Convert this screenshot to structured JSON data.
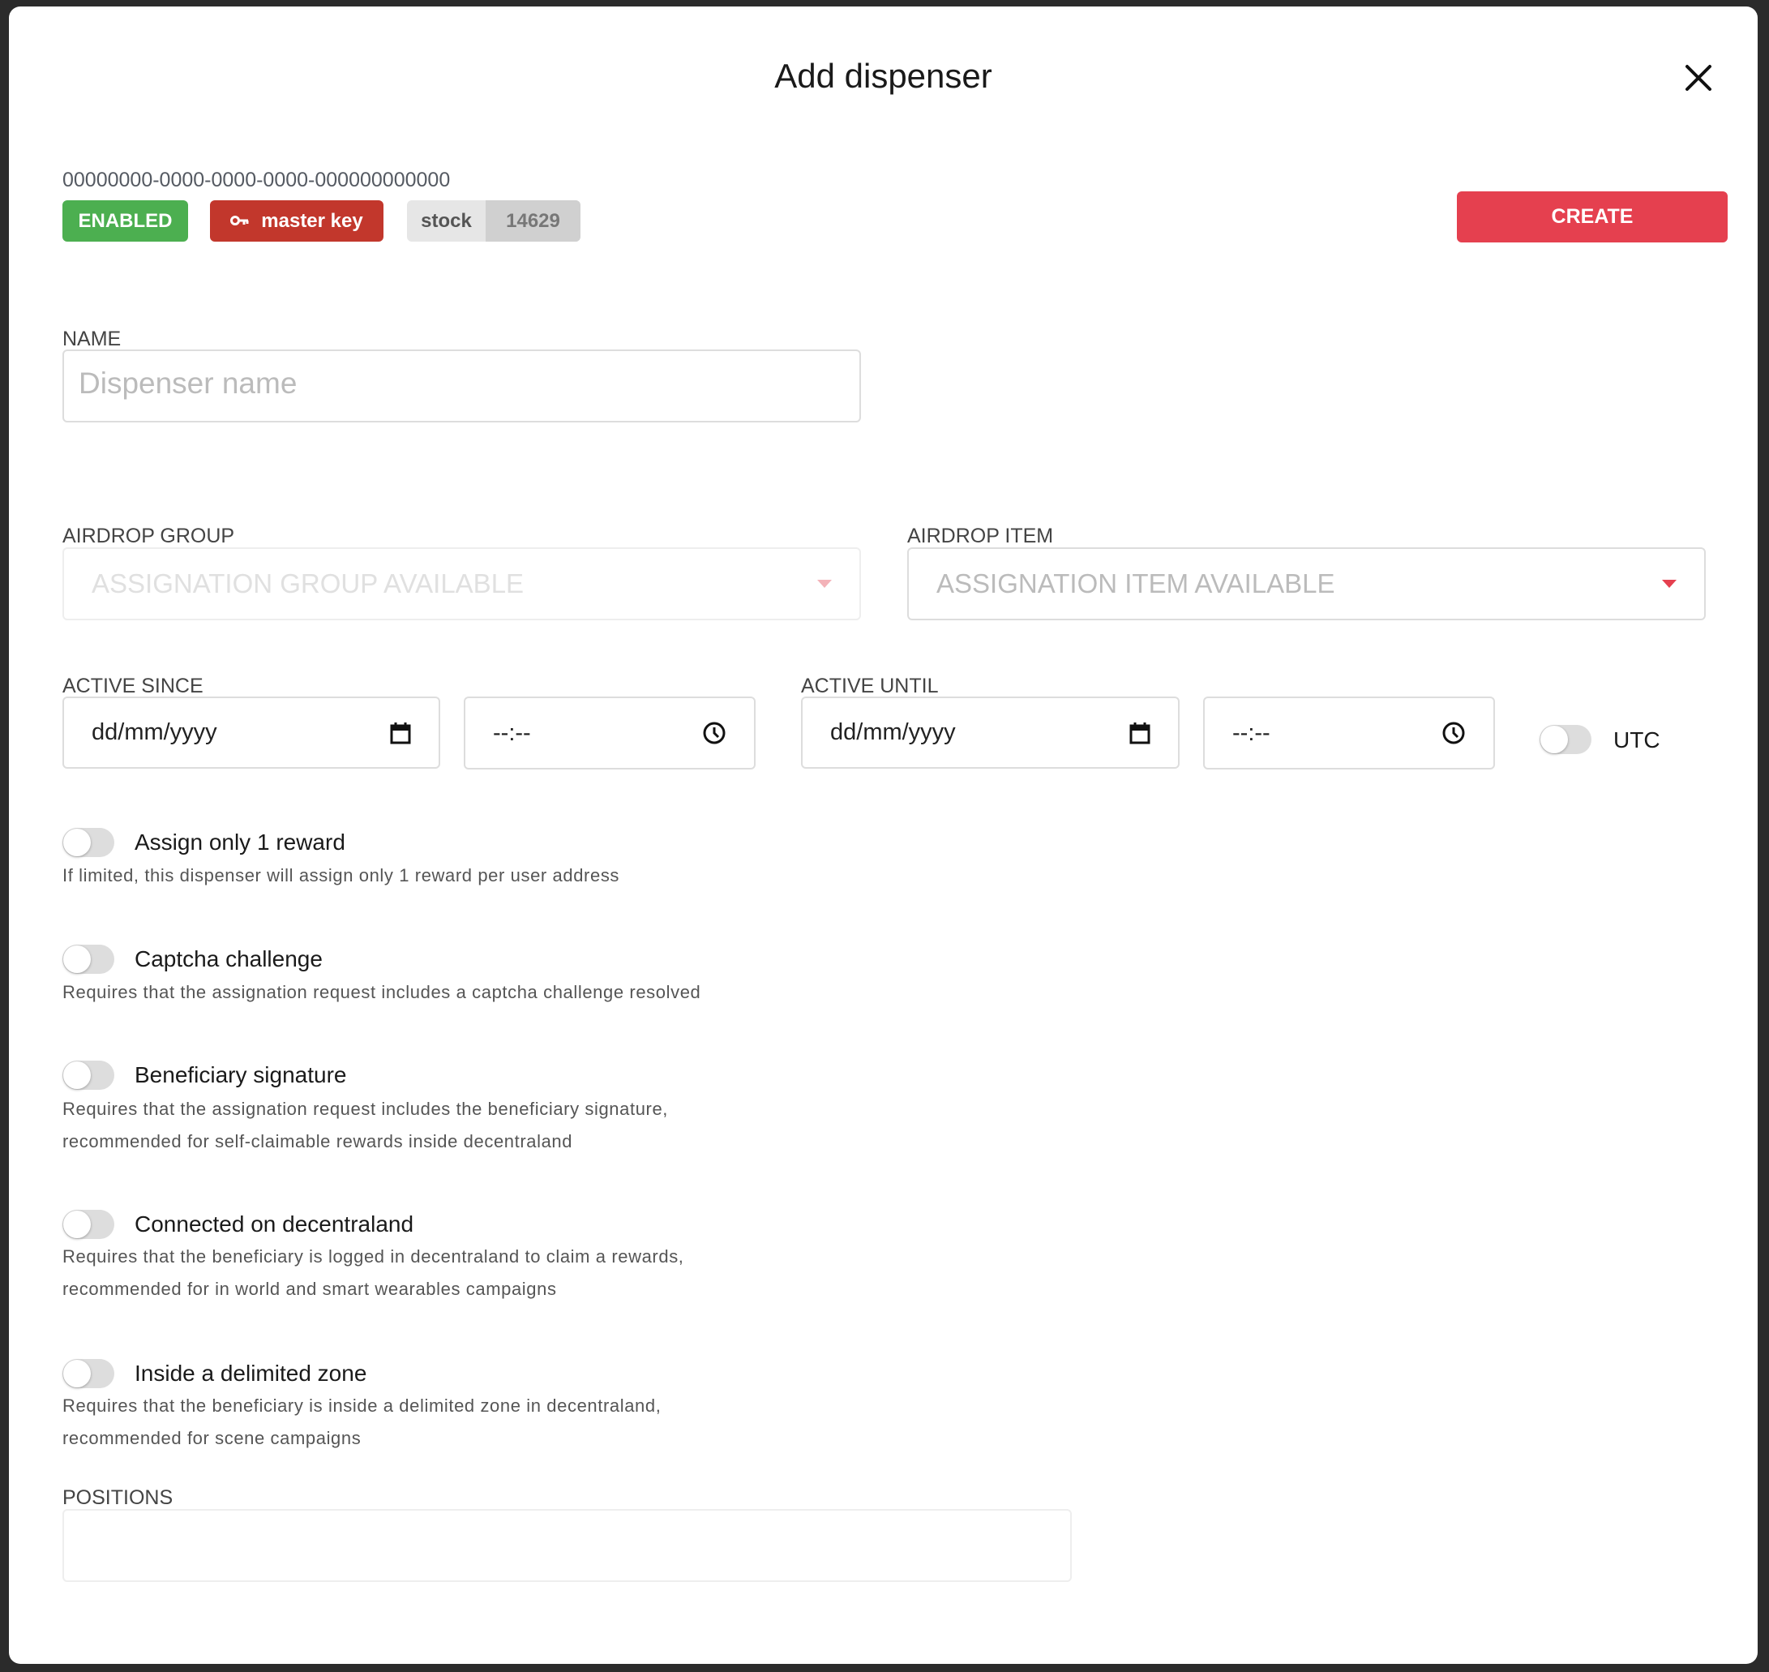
{
  "modal": {
    "title": "Add dispenser",
    "close_icon": "close-icon"
  },
  "header": {
    "uuid": "00000000-0000-0000-0000-000000000000",
    "status_badge": "ENABLED",
    "key_badge": "master key",
    "stock_label": "stock",
    "stock_value": "14629",
    "create_label": "CREATE"
  },
  "colors": {
    "enabled": "#4caf50",
    "master_key": "#c2372c",
    "create": "#e5404f"
  },
  "name": {
    "label": "NAME",
    "placeholder": "Dispenser name",
    "value": ""
  },
  "airdrop_group": {
    "label": "AIRDROP GROUP",
    "value": "ASSIGNATION GROUP AVAILABLE"
  },
  "airdrop_item": {
    "label": "AIRDROP ITEM",
    "value": "ASSIGNATION ITEM AVAILABLE"
  },
  "active_since": {
    "label": "ACTIVE SINCE",
    "date": "dd/mm/yyyy",
    "time": "--:--"
  },
  "active_until": {
    "label": "ACTIVE UNTIL",
    "date": "dd/mm/yyyy",
    "time": "--:--"
  },
  "utc": {
    "label": "UTC",
    "on": false
  },
  "options": [
    {
      "label": "Assign only 1 reward",
      "desc": [
        "If limited, this dispenser will assign only 1 reward per user address"
      ],
      "on": false
    },
    {
      "label": "Captcha challenge",
      "desc": [
        "Requires that the assignation request includes a captcha challenge resolved"
      ],
      "on": false
    },
    {
      "label": "Beneficiary signature",
      "desc": [
        "Requires that the assignation request includes the beneficiary signature,",
        "recommended for self-claimable rewards inside decentraland"
      ],
      "on": false
    },
    {
      "label": "Connected on decentraland",
      "desc": [
        "Requires that the beneficiary is logged in decentraland to claim a rewards,",
        "recommended for in world and smart wearables campaigns"
      ],
      "on": false
    },
    {
      "label": "Inside a delimited zone",
      "desc": [
        "Requires that the beneficiary is inside a delimited zone in decentraland,",
        "recommended for scene campaigns"
      ],
      "on": false
    }
  ],
  "positions": {
    "label": "POSITIONS",
    "value": ""
  }
}
